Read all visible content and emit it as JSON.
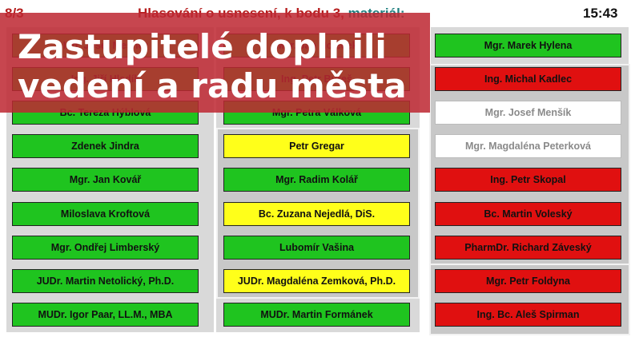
{
  "header": {
    "item_number": "8/3",
    "title": "Hlasování o usnesení, k bodu 3, ",
    "title_highlight": "materiál:",
    "time": "15:43"
  },
  "banner": {
    "line1": "Zastupitelé doplnili",
    "line2": "vedení a radu města"
  },
  "colors": {
    "green": "#1fc41f",
    "yellow": "#ffff1a",
    "red": "#e01010",
    "white": "#ffffff",
    "banner": "#be2832"
  },
  "column1": [
    {
      "name": "Ing. Josef Mesner",
      "status": "green"
    },
    {
      "name": "Ing. Jiří Hladík",
      "status": "green"
    },
    {
      "name": "Bc. Tereza Hýblová",
      "status": "green"
    },
    {
      "name": "Zdenek Jindra",
      "status": "green"
    },
    {
      "name": "Mgr. Jan Kovář",
      "status": "green"
    },
    {
      "name": "Miloslava Kroftová",
      "status": "green"
    },
    {
      "name": "Mgr. Ondřej Limberský",
      "status": "green"
    },
    {
      "name": "JUDr. Martin Netolický, Ph.D.",
      "status": "green"
    },
    {
      "name": "MUDr. Igor Paar, LL.M., MBA",
      "status": "green"
    }
  ],
  "column2": [
    {
      "name": "Mgr. Jan Holeček",
      "status": "green"
    },
    {
      "name": "Ing. Petr Bureš",
      "status": "green"
    },
    {
      "name": "Mgr. Petra Válková",
      "status": "green"
    },
    {
      "name": "Petr Gregar",
      "status": "yellow"
    },
    {
      "name": "Mgr. Radim Kolář",
      "status": "green"
    },
    {
      "name": "Bc. Zuzana Nejedlá, DiS.",
      "status": "yellow"
    },
    {
      "name": "Lubomír Vašina",
      "status": "green"
    },
    {
      "name": "JUDr. Magdaléna Zemková, Ph.D.",
      "status": "yellow"
    },
    {
      "name": "MUDr. Martin Formánek",
      "status": "green"
    }
  ],
  "column3": [
    {
      "name": "Mgr. Marek Hylena",
      "status": "green"
    },
    {
      "name": "Ing. Michal Kadlec",
      "status": "red"
    },
    {
      "name": "Mgr. Josef Menšík",
      "status": "white"
    },
    {
      "name": "Mgr. Magdaléna Peterková",
      "status": "white"
    },
    {
      "name": "Ing. Petr Skopal",
      "status": "red"
    },
    {
      "name": "Bc. Martin Voleský",
      "status": "red"
    },
    {
      "name": "PharmDr. Richard Záveský",
      "status": "red"
    },
    {
      "name": "Mgr. Petr Foldyna",
      "status": "red"
    },
    {
      "name": "Ing. Bc. Aleš Spirman",
      "status": "red"
    }
  ]
}
